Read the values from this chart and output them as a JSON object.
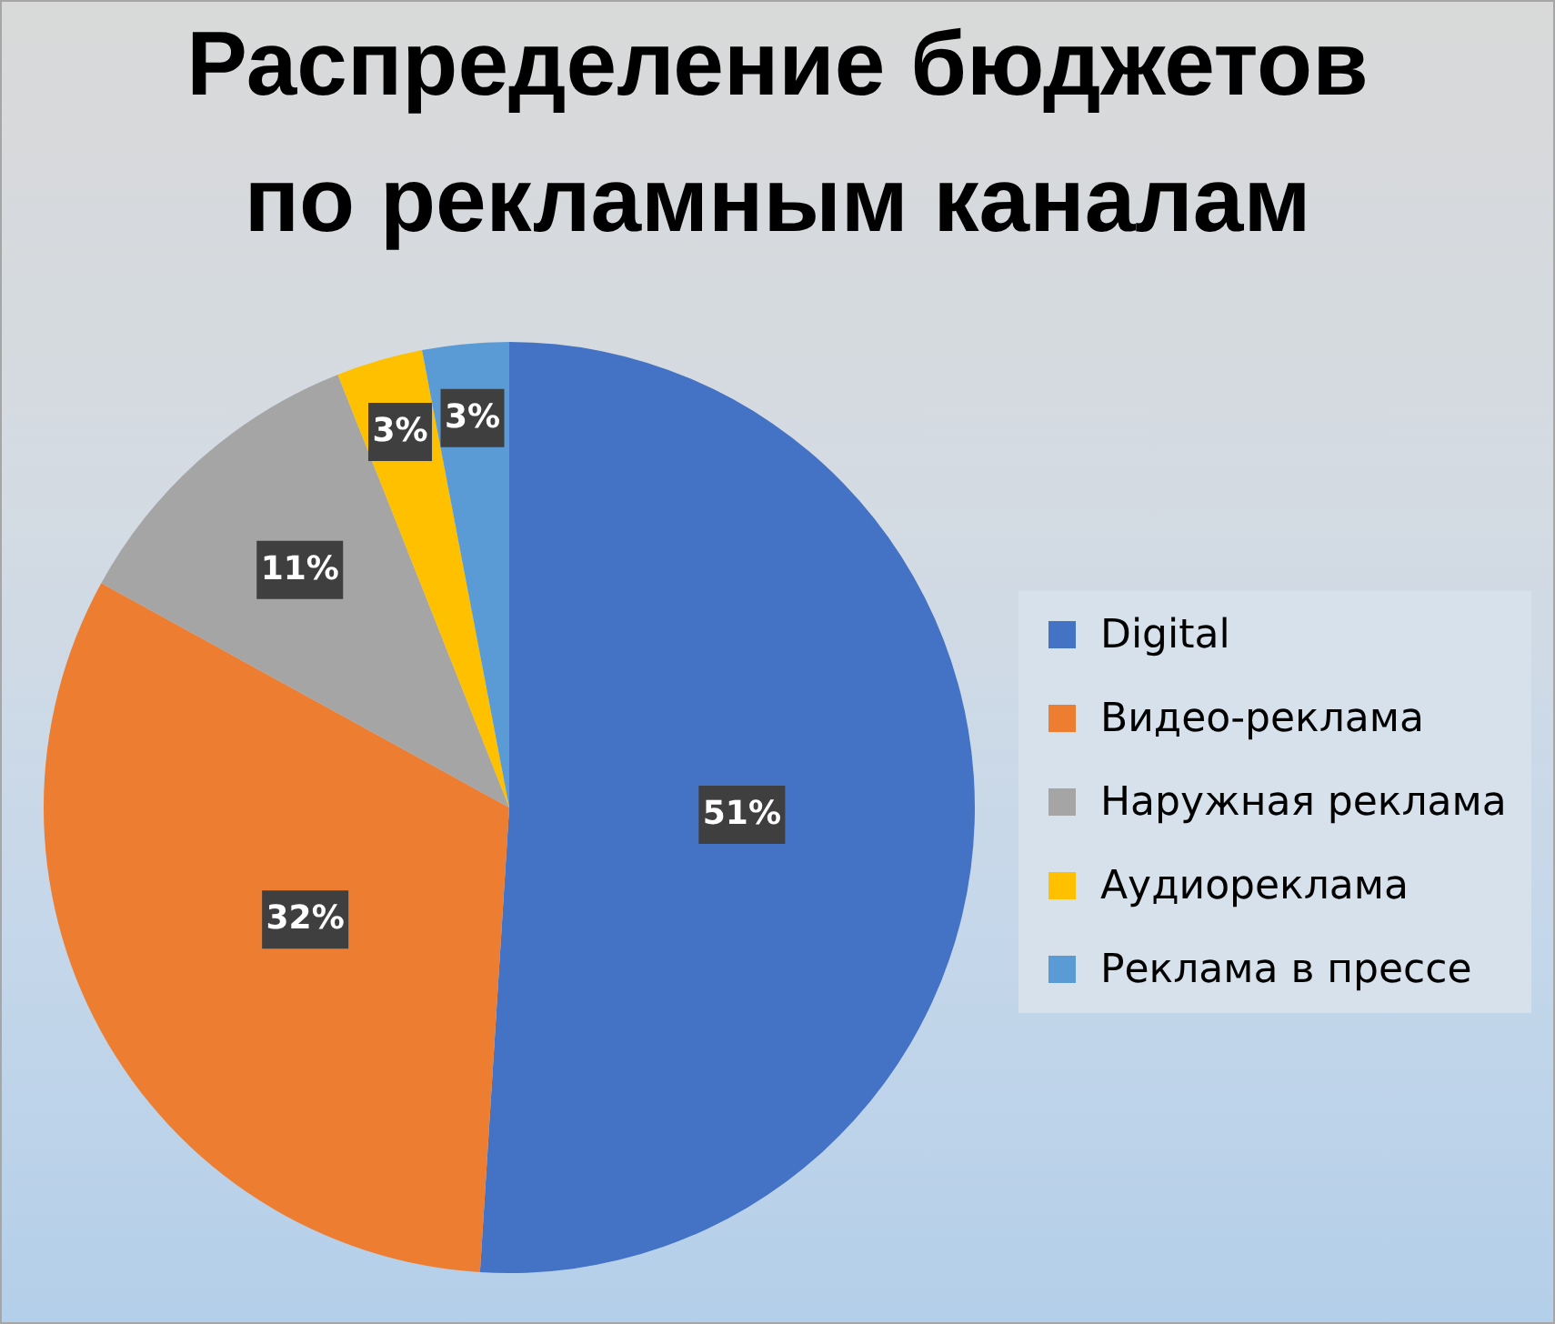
{
  "chart_data": {
    "type": "pie",
    "title": "Распределение бюджетов по рекламным каналам",
    "categories": [
      "Digital",
      "Видео-реклама",
      "Наружная реклама",
      "Аудиореклама",
      "Реклама в прессе"
    ],
    "values": [
      51,
      32,
      11,
      3,
      3
    ],
    "colors": [
      "#4472c4",
      "#ed7d31",
      "#a5a5a5",
      "#ffc000",
      "#5b9bd5"
    ],
    "value_labels": [
      "51%",
      "32%",
      "11%",
      "3%",
      "3%"
    ],
    "legend": "right"
  }
}
